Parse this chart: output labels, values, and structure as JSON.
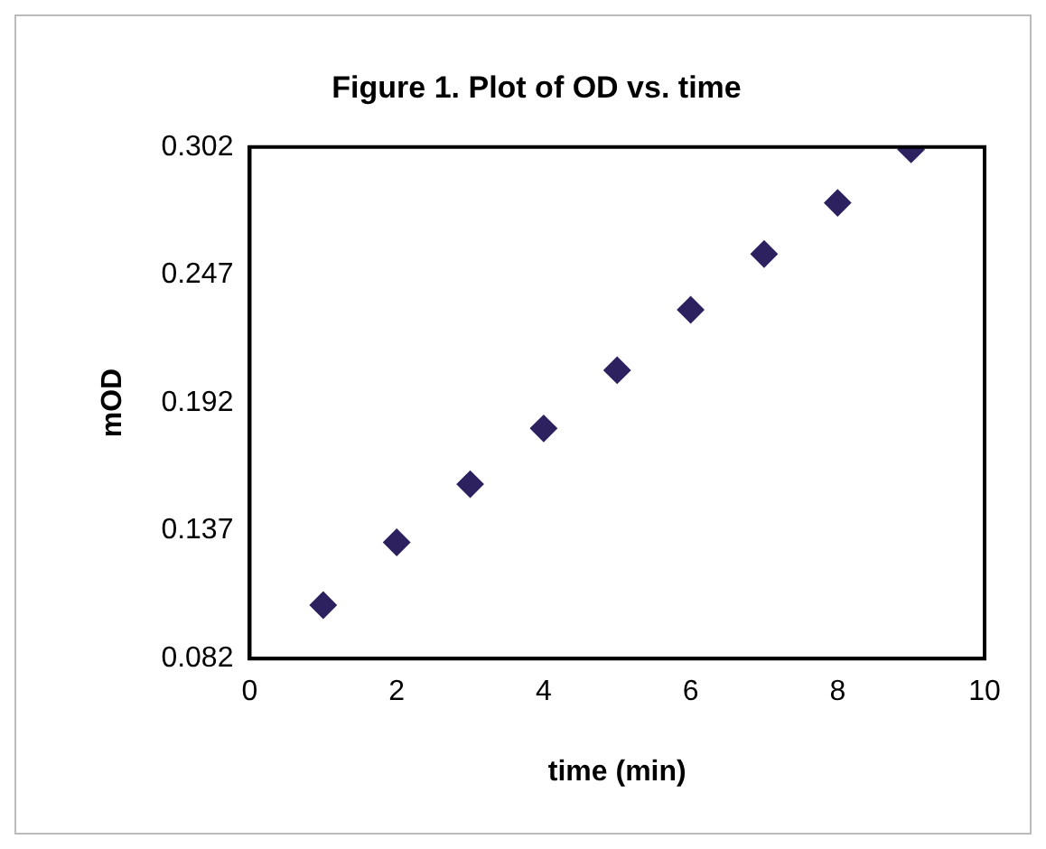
{
  "chart_data": {
    "type": "scatter",
    "title": "Figure 1. Plot of OD vs. time",
    "xlabel": "time (min)",
    "ylabel": "mOD",
    "x": [
      1,
      2,
      3,
      4,
      5,
      6,
      7,
      8,
      9
    ],
    "series": [
      {
        "color": "#2e2160",
        "values": [
          0.105,
          0.132,
          0.157,
          0.181,
          0.206,
          0.232,
          0.256,
          0.278,
          0.301
        ]
      }
    ],
    "xlim": [
      0,
      10
    ],
    "xticks": [
      0,
      2,
      4,
      6,
      8,
      10
    ],
    "ylim": [
      0.082,
      0.302
    ],
    "yticks": [
      0.082,
      0.137,
      0.192,
      0.247,
      0.302
    ],
    "grid": false,
    "legend": false,
    "marker": "diamond"
  }
}
